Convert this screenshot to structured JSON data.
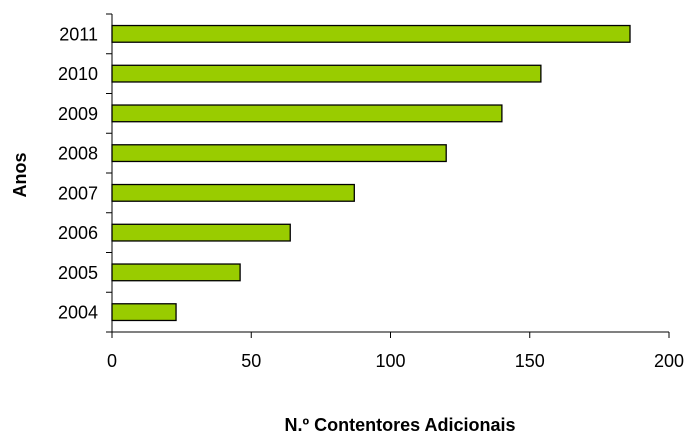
{
  "chart_data": {
    "type": "bar",
    "orientation": "horizontal",
    "categories": [
      "2004",
      "2005",
      "2006",
      "2007",
      "2008",
      "2009",
      "2010",
      "2011"
    ],
    "values": [
      23,
      46,
      64,
      87,
      120,
      140,
      154,
      186
    ],
    "xlabel": "N.º Contentores Adicionais",
    "ylabel": "Anos",
    "xlim": [
      0,
      200
    ],
    "xticks": [
      "0",
      "50",
      "100",
      "150",
      "200"
    ],
    "grid": false,
    "legend": "none",
    "colors": {
      "bar_fill": "#99cc00",
      "bar_stroke": "#000000",
      "axis": "#000000"
    }
  }
}
